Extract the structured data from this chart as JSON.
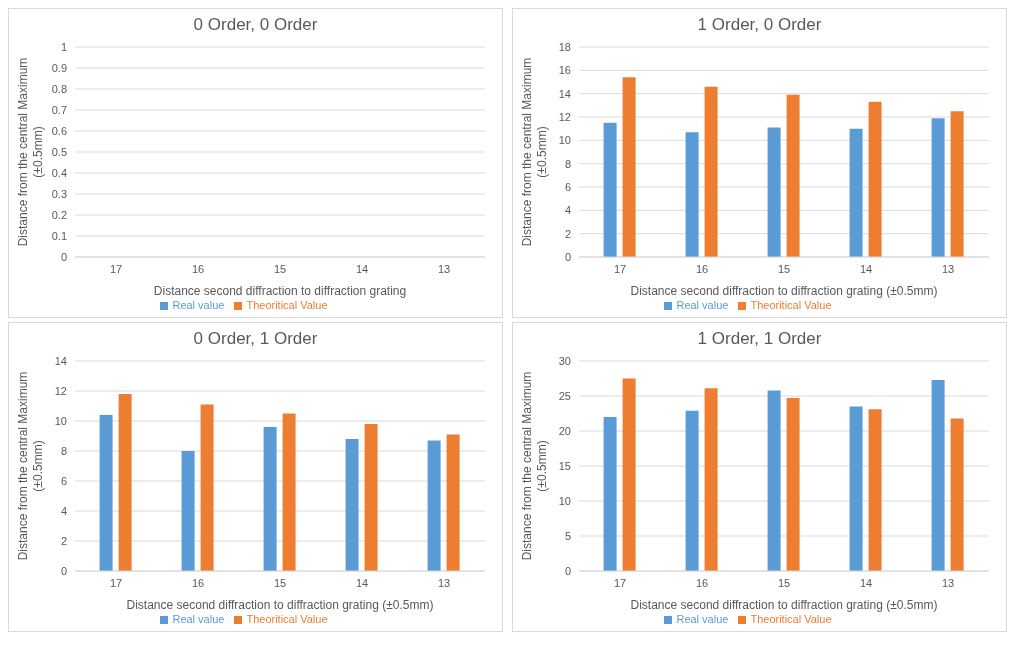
{
  "chart_data": [
    {
      "type": "bar",
      "title": "0 Order, 0 Order",
      "xlabel": "Distance second diffraction to diffraction grating",
      "ylabel": "Distance from the central Maximum\n(±0.5mm)",
      "categories": [
        "17",
        "16",
        "15",
        "14",
        "13"
      ],
      "series": [
        {
          "name": "Real value",
          "color": "#5b9bd5",
          "values": [
            null,
            null,
            null,
            null,
            null
          ]
        },
        {
          "name": "Theoritical Value",
          "color": "#ed7d31",
          "values": [
            null,
            null,
            null,
            null,
            null
          ]
        }
      ],
      "ylim": [
        0,
        1
      ],
      "yticks": [
        0,
        0.1,
        0.2,
        0.3,
        0.4,
        0.5,
        0.6,
        0.7,
        0.8,
        0.9,
        1
      ],
      "grid": "y",
      "legend": "bottom"
    },
    {
      "type": "bar",
      "title": "1 Order, 0 Order",
      "xlabel": "Distance second diffraction to diffraction grating (±0.5mm)",
      "ylabel": "Distance from the central Maximum\n(±0.5mm)",
      "categories": [
        "17",
        "16",
        "15",
        "14",
        "13"
      ],
      "series": [
        {
          "name": "Real value",
          "color": "#5b9bd5",
          "values": [
            11.5,
            10.7,
            11.1,
            11.0,
            11.9
          ]
        },
        {
          "name": "Theoritical Value",
          "color": "#ed7d31",
          "values": [
            15.4,
            14.6,
            13.9,
            13.3,
            12.5
          ]
        }
      ],
      "ylim": [
        0,
        18
      ],
      "yticks": [
        0,
        2,
        4,
        6,
        8,
        10,
        12,
        14,
        16,
        18
      ],
      "grid": "y",
      "legend": "bottom"
    },
    {
      "type": "bar",
      "title": "0 Order, 1 Order",
      "xlabel": "Distance second diffraction to diffraction grating (±0.5mm)",
      "ylabel": "Distance from the central Maximum\n(±0.5mm)",
      "categories": [
        "17",
        "16",
        "15",
        "14",
        "13"
      ],
      "series": [
        {
          "name": "Real value",
          "color": "#5b9bd5",
          "values": [
            10.4,
            8.0,
            9.6,
            8.8,
            8.7
          ]
        },
        {
          "name": "Theoritical Value",
          "color": "#ed7d31",
          "values": [
            11.8,
            11.1,
            10.5,
            9.8,
            9.1
          ]
        }
      ],
      "ylim": [
        0,
        14
      ],
      "yticks": [
        0,
        2,
        4,
        6,
        8,
        10,
        12,
        14
      ],
      "grid": "y",
      "legend": "bottom"
    },
    {
      "type": "bar",
      "title": "1 Order, 1 Order",
      "xlabel": "Distance second diffraction to diffraction grating (±0.5mm)",
      "ylabel": "Distance from the central Maximum\n(±0.5mm)",
      "categories": [
        "17",
        "16",
        "15",
        "14",
        "13"
      ],
      "series": [
        {
          "name": "Real value",
          "color": "#5b9bd5",
          "values": [
            22.0,
            22.9,
            25.8,
            23.5,
            27.3
          ]
        },
        {
          "name": "Theoritical Value",
          "color": "#ed7d31",
          "values": [
            27.5,
            26.1,
            24.7,
            23.1,
            21.8
          ]
        }
      ],
      "ylim": [
        0,
        30
      ],
      "yticks": [
        0,
        5,
        10,
        15,
        20,
        25,
        30
      ],
      "grid": "y",
      "legend": "bottom"
    }
  ]
}
